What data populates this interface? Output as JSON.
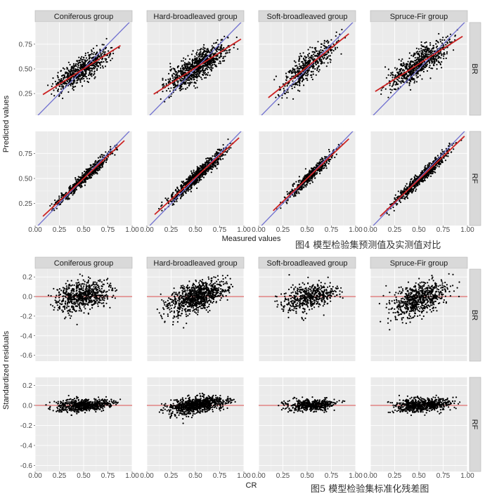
{
  "chart_data": [
    {
      "type": "scatter",
      "caption": "图4 模型检验集预测值及实测值对比",
      "xlabel": "Measured values",
      "ylabel": "Predicted values",
      "xlim": [
        0,
        1.0
      ],
      "ylim": [
        0.03,
        0.97
      ],
      "xticks": [
        "0.00",
        "0.25",
        "0.50",
        "0.75",
        "1.00"
      ],
      "yticks": [
        "0.25",
        "0.50",
        "0.75"
      ],
      "columns": [
        "Coniferous group",
        "Hard-broadleaved group",
        "Soft-broadleaved group",
        "Spruce-Fir group"
      ],
      "rows": [
        "BR",
        "RF"
      ],
      "reference_line": {
        "slope": 1,
        "intercept": 0,
        "color": "#6f6fd0"
      },
      "fit_line_color": "#cc2222",
      "panels": [
        {
          "column": "Coniferous group",
          "row": "BR",
          "x_range": [
            0.08,
            0.88
          ],
          "n": 650,
          "fit": {
            "slope": 0.62,
            "intercept": 0.19
          },
          "noise_sd": 0.06
        },
        {
          "column": "Hard-broadleaved group",
          "row": "BR",
          "x_range": [
            0.07,
            0.97
          ],
          "n": 900,
          "fit": {
            "slope": 0.62,
            "intercept": 0.2
          },
          "noise_sd": 0.07
        },
        {
          "column": "Soft-broadleaved group",
          "row": "BR",
          "x_range": [
            0.1,
            0.93
          ],
          "n": 500,
          "fit": {
            "slope": 0.78,
            "intercept": 0.13
          },
          "noise_sd": 0.07
        },
        {
          "column": "Spruce-Fir group",
          "row": "BR",
          "x_range": [
            0.05,
            0.95
          ],
          "n": 700,
          "fit": {
            "slope": 0.62,
            "intercept": 0.24
          },
          "noise_sd": 0.07
        },
        {
          "column": "Coniferous group",
          "row": "RF",
          "x_range": [
            0.08,
            0.92
          ],
          "n": 650,
          "fit": {
            "slope": 0.9,
            "intercept": 0.05
          },
          "noise_sd": 0.03
        },
        {
          "column": "Hard-broadleaved group",
          "row": "RF",
          "x_range": [
            0.08,
            0.95
          ],
          "n": 900,
          "fit": {
            "slope": 0.88,
            "intercept": 0.07
          },
          "noise_sd": 0.035
        },
        {
          "column": "Soft-broadleaved group",
          "row": "RF",
          "x_range": [
            0.15,
            0.93
          ],
          "n": 500,
          "fit": {
            "slope": 0.92,
            "intercept": 0.04
          },
          "noise_sd": 0.03
        },
        {
          "column": "Spruce-Fir group",
          "row": "RF",
          "x_range": [
            0.1,
            0.97
          ],
          "n": 700,
          "fit": {
            "slope": 0.92,
            "intercept": 0.03
          },
          "noise_sd": 0.03
        }
      ]
    },
    {
      "type": "scatter",
      "caption": "图5 模型检验集标准化残差图",
      "xlabel": "CR",
      "ylabel": "Standardized residuals",
      "xlim": [
        0,
        1.0
      ],
      "ylim": [
        -0.66,
        0.28
      ],
      "xticks": [
        "0.00",
        "0.25",
        "0.50",
        "0.75",
        "1.00"
      ],
      "yticks": [
        "0.2",
        "0.0",
        "-0.2",
        "-0.4",
        "-0.6"
      ],
      "columns": [
        "Coniferous group",
        "Hard-broadleaved group",
        "Soft-broadleaved group",
        "Spruce-Fir group"
      ],
      "rows": [
        "BR",
        "RF"
      ],
      "reference_line": {
        "y": 0,
        "color": "#e07a7a"
      },
      "panels": [
        {
          "column": "Coniferous group",
          "row": "BR",
          "x_range": [
            0.1,
            0.88
          ],
          "n": 650,
          "trend": {
            "slope": 0.18,
            "intercept": -0.09
          },
          "noise_sd": 0.07
        },
        {
          "column": "Hard-broadleaved group",
          "row": "BR",
          "x_range": [
            0.07,
            0.97
          ],
          "n": 900,
          "trend": {
            "slope": 0.3,
            "intercept": -0.16
          },
          "noise_sd": 0.07
        },
        {
          "column": "Soft-broadleaved group",
          "row": "BR",
          "x_range": [
            0.1,
            0.93
          ],
          "n": 500,
          "trend": {
            "slope": 0.18,
            "intercept": -0.1
          },
          "noise_sd": 0.07
        },
        {
          "column": "Spruce-Fir group",
          "row": "BR",
          "x_range": [
            0.05,
            0.95
          ],
          "n": 700,
          "trend": {
            "slope": 0.28,
            "intercept": -0.16
          },
          "noise_sd": 0.08
        },
        {
          "column": "Coniferous group",
          "row": "RF",
          "x_range": [
            0.08,
            0.92
          ],
          "n": 650,
          "trend": {
            "slope": 0.06,
            "intercept": -0.03
          },
          "noise_sd": 0.03
        },
        {
          "column": "Hard-broadleaved group",
          "row": "RF",
          "x_range": [
            0.08,
            0.95
          ],
          "n": 900,
          "trend": {
            "slope": 0.12,
            "intercept": -0.06
          },
          "noise_sd": 0.04
        },
        {
          "column": "Soft-broadleaved group",
          "row": "RF",
          "x_range": [
            0.15,
            0.93
          ],
          "n": 500,
          "trend": {
            "slope": 0.04,
            "intercept": -0.02
          },
          "noise_sd": 0.03
        },
        {
          "column": "Spruce-Fir group",
          "row": "RF",
          "x_range": [
            0.1,
            0.97
          ],
          "n": 700,
          "trend": {
            "slope": 0.06,
            "intercept": -0.03
          },
          "noise_sd": 0.035
        }
      ]
    }
  ]
}
